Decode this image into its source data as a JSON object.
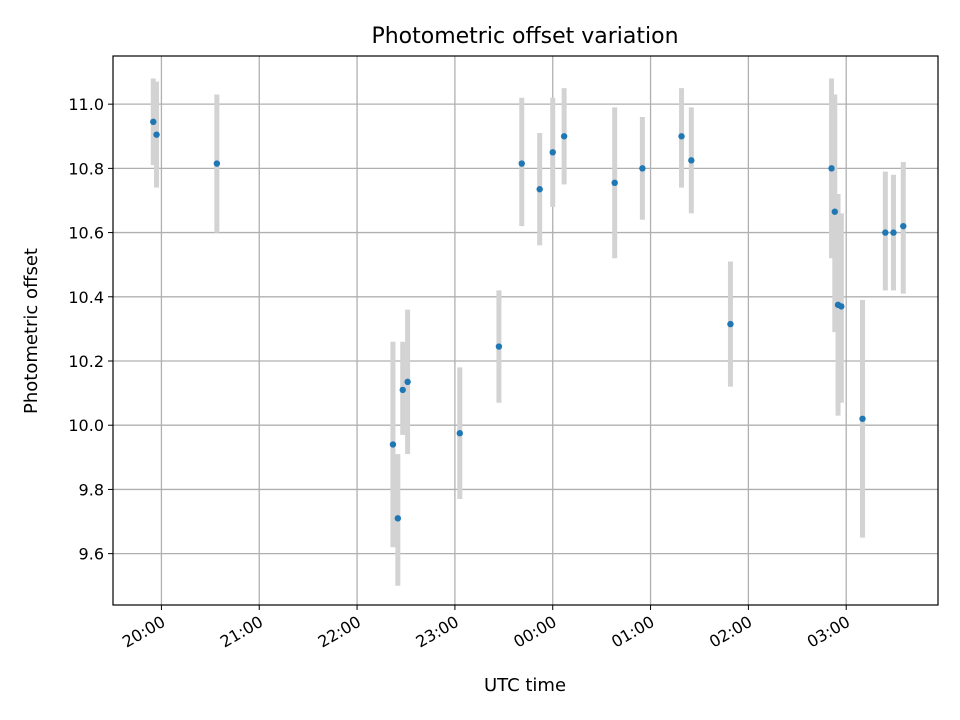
{
  "chart_data": {
    "type": "scatter",
    "title": "Photometric offset variation",
    "xlabel": "UTC time",
    "ylabel": "Photometric offset",
    "x_tick_labels": [
      "20:00",
      "21:00",
      "22:00",
      "23:00",
      "00:00",
      "01:00",
      "02:00",
      "03:00"
    ],
    "x_tick_minutes": [
      1200,
      1260,
      1320,
      1380,
      1440,
      1500,
      1560,
      1620
    ],
    "y_tick_labels": [
      "9.6",
      "9.8",
      "10.0",
      "10.2",
      "10.4",
      "10.6",
      "10.8",
      "11.0"
    ],
    "y_tick_values": [
      9.6,
      9.8,
      10.0,
      10.2,
      10.4,
      10.6,
      10.8,
      11.0
    ],
    "xlim_minutes": [
      1170.3,
      1676.3
    ],
    "ylim": [
      9.44,
      11.15
    ],
    "grid": true,
    "colors": {
      "marker": "#1f77b4",
      "errorbar": "#d3d3d3",
      "grid": "#b0b0b0"
    },
    "points": [
      {
        "time": "19:55",
        "y": 10.945,
        "lo": 10.81,
        "hi": 11.08
      },
      {
        "time": "19:57",
        "y": 10.905,
        "lo": 10.74,
        "hi": 11.07
      },
      {
        "time": "20:34",
        "y": 10.815,
        "lo": 10.6,
        "hi": 11.03
      },
      {
        "time": "22:22",
        "y": 9.94,
        "lo": 9.62,
        "hi": 10.26
      },
      {
        "time": "22:25",
        "y": 9.71,
        "lo": 9.5,
        "hi": 9.91
      },
      {
        "time": "22:28",
        "y": 10.11,
        "lo": 9.97,
        "hi": 10.26
      },
      {
        "time": "22:31",
        "y": 10.135,
        "lo": 9.91,
        "hi": 10.36
      },
      {
        "time": "23:03",
        "y": 9.975,
        "lo": 9.77,
        "hi": 10.18
      },
      {
        "time": "23:27",
        "y": 10.245,
        "lo": 10.07,
        "hi": 10.42
      },
      {
        "time": "23:41",
        "y": 10.815,
        "lo": 10.62,
        "hi": 11.02
      },
      {
        "time": "23:52",
        "y": 10.735,
        "lo": 10.56,
        "hi": 10.91
      },
      {
        "time": "00:00",
        "y": 10.85,
        "lo": 10.68,
        "hi": 11.02
      },
      {
        "time": "00:07",
        "y": 10.9,
        "lo": 10.75,
        "hi": 11.05
      },
      {
        "time": "00:38",
        "y": 10.755,
        "lo": 10.52,
        "hi": 10.99
      },
      {
        "time": "00:55",
        "y": 10.8,
        "lo": 10.64,
        "hi": 10.96
      },
      {
        "time": "01:19",
        "y": 10.9,
        "lo": 10.74,
        "hi": 11.05
      },
      {
        "time": "01:25",
        "y": 10.825,
        "lo": 10.66,
        "hi": 10.99
      },
      {
        "time": "01:49",
        "y": 10.315,
        "lo": 10.12,
        "hi": 10.51
      },
      {
        "time": "02:51",
        "y": 10.8,
        "lo": 10.52,
        "hi": 11.08
      },
      {
        "time": "02:53",
        "y": 10.665,
        "lo": 10.29,
        "hi": 11.03
      },
      {
        "time": "02:55",
        "y": 10.375,
        "lo": 10.03,
        "hi": 10.72
      },
      {
        "time": "02:57",
        "y": 10.37,
        "lo": 10.07,
        "hi": 10.66
      },
      {
        "time": "03:10",
        "y": 10.02,
        "lo": 9.65,
        "hi": 10.39
      },
      {
        "time": "03:24",
        "y": 10.6,
        "lo": 10.42,
        "hi": 10.79
      },
      {
        "time": "03:29",
        "y": 10.6,
        "lo": 10.42,
        "hi": 10.78
      },
      {
        "time": "03:35",
        "y": 10.62,
        "lo": 10.41,
        "hi": 10.82
      }
    ]
  }
}
